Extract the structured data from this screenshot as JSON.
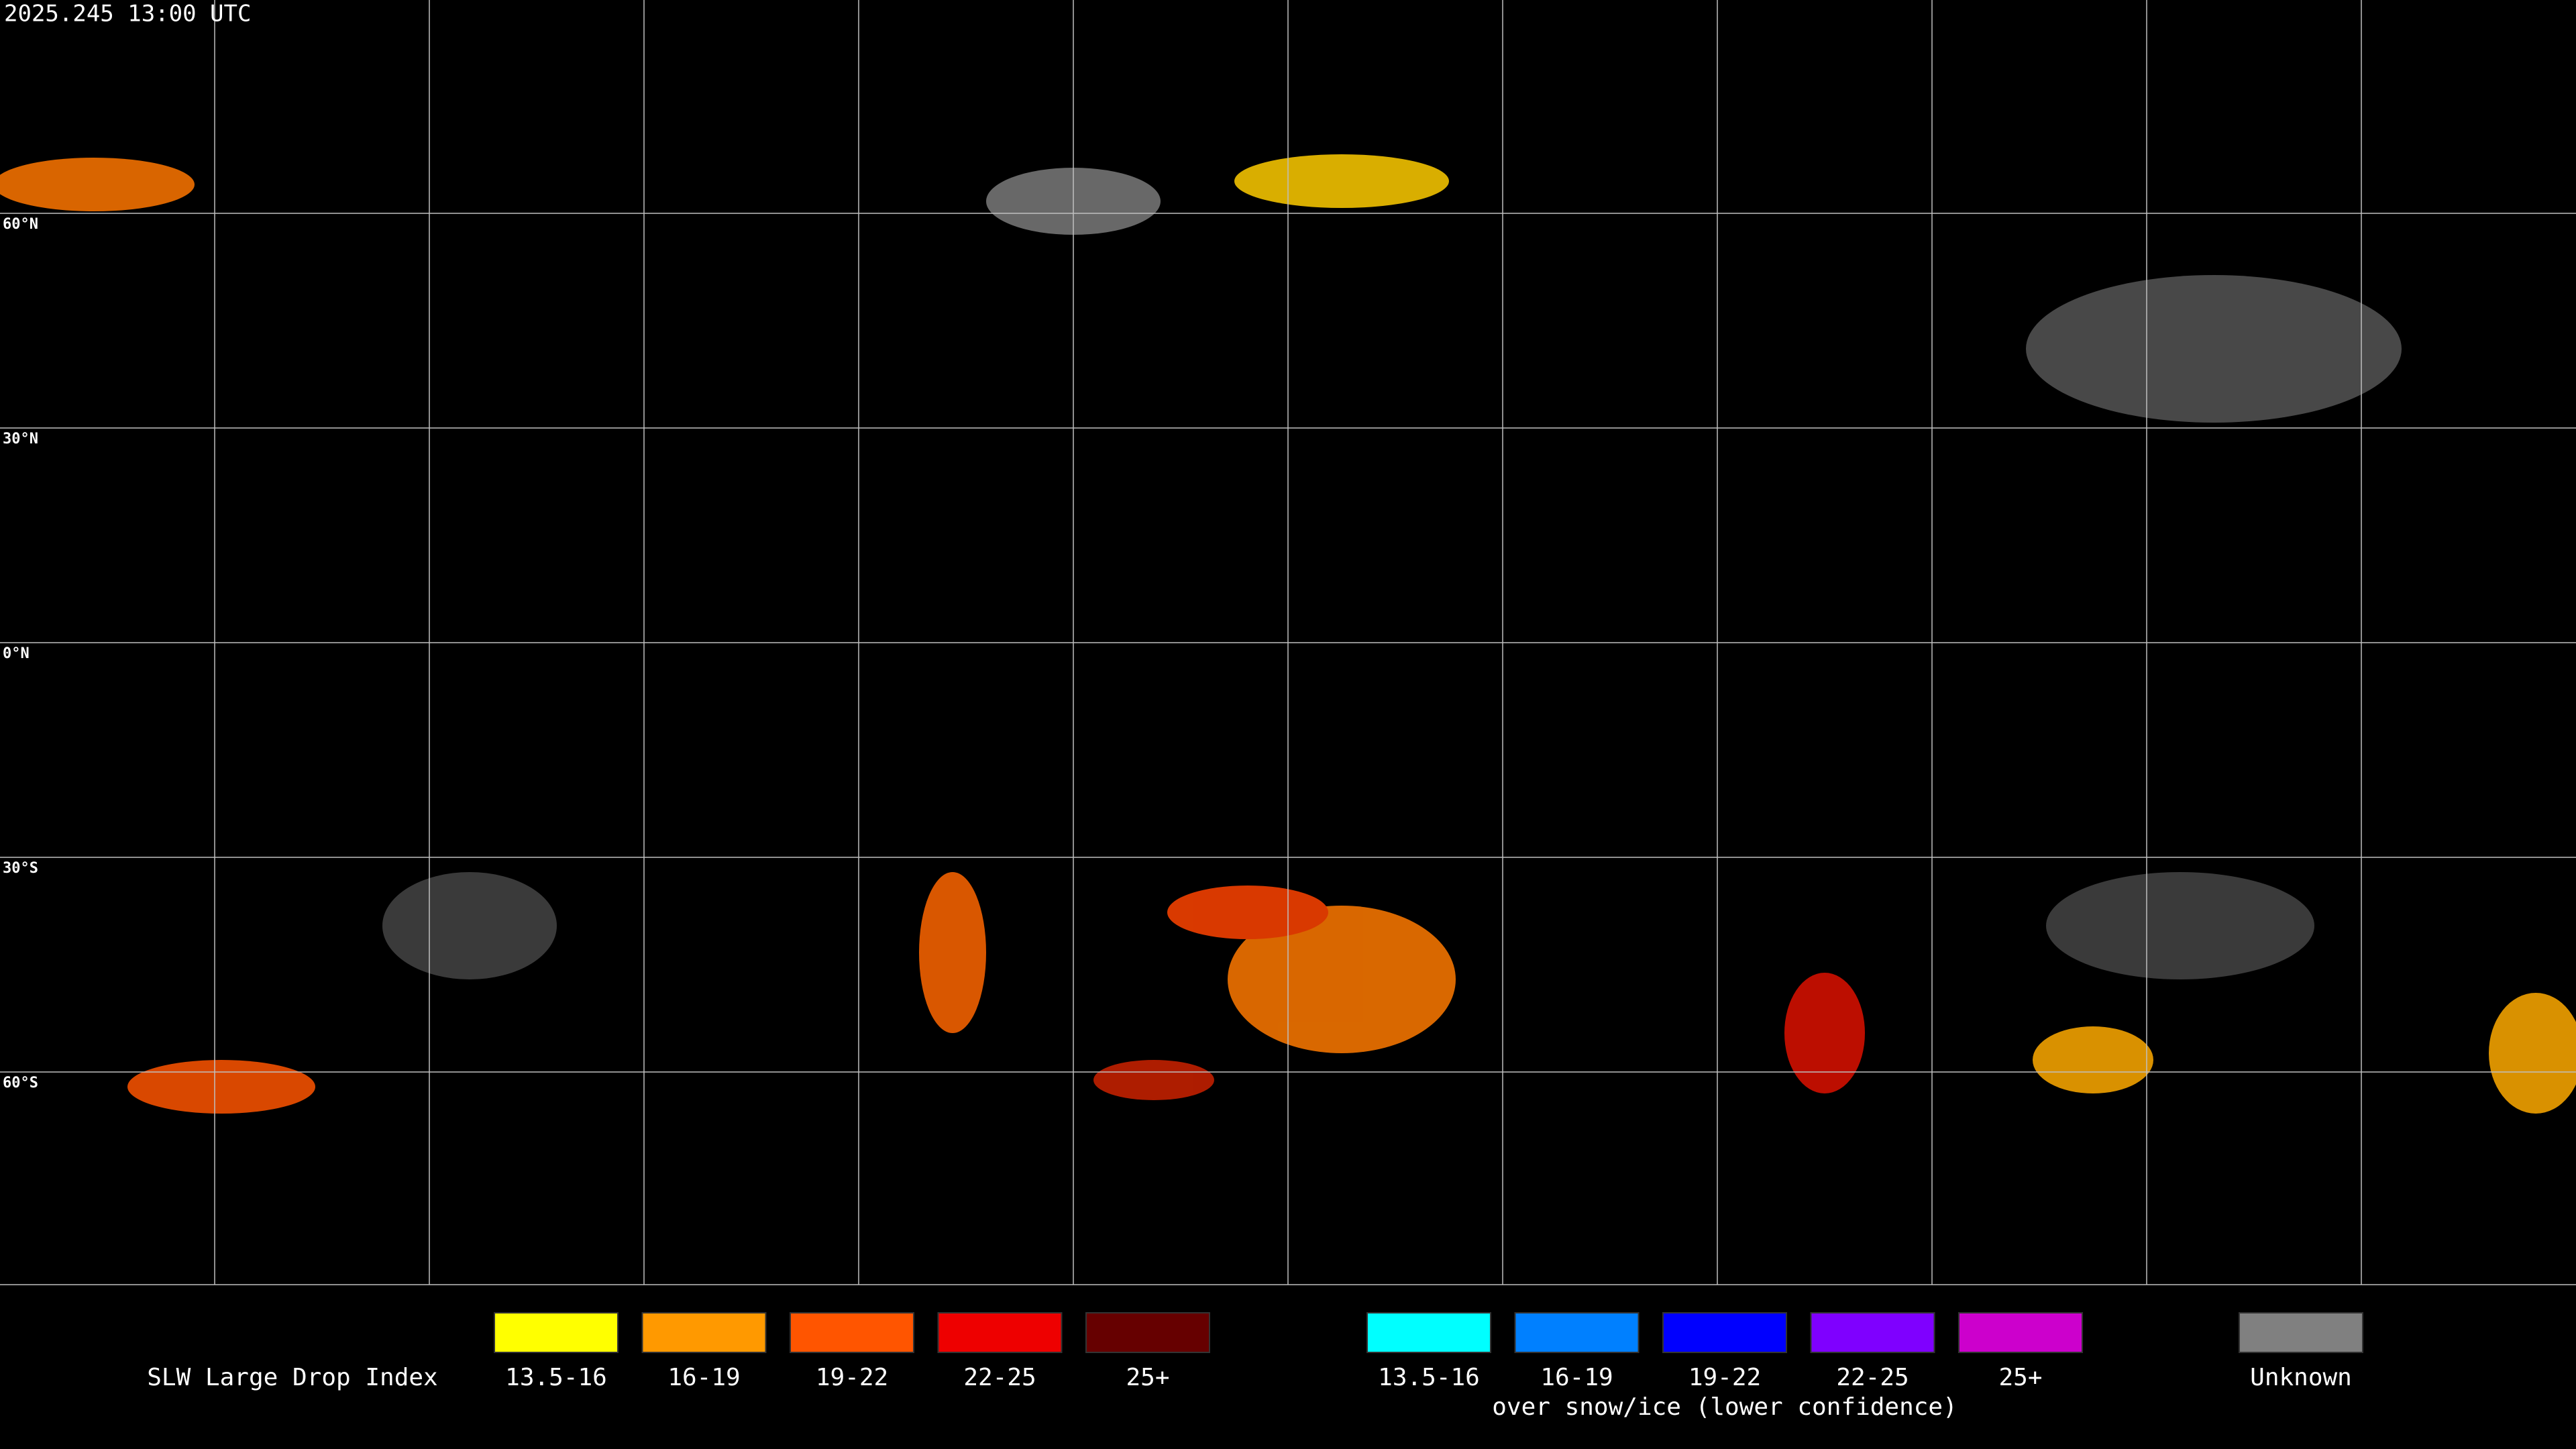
{
  "header": {
    "timestamp": "2025.245 13:00 UTC"
  },
  "map": {
    "lat_labels": [
      "60°N",
      "30°N",
      "0°N",
      "30°S",
      "60°S"
    ]
  },
  "legend": {
    "title": "SLW Large Drop Index",
    "groups": [
      {
        "items": [
          {
            "label": "13.5-16",
            "color": "#ffff00"
          },
          {
            "label": "16-19",
            "color": "#ff9900"
          },
          {
            "label": "19-22",
            "color": "#ff5500"
          },
          {
            "label": "22-25",
            "color": "#ee0000"
          },
          {
            "label": "25+",
            "color": "#660000"
          }
        ]
      },
      {
        "items": [
          {
            "label": "13.5-16",
            "color": "#00ffff"
          },
          {
            "label": "16-19",
            "color": "#0080ff"
          },
          {
            "label": "19-22",
            "color": "#0000ff"
          },
          {
            "label": "22-25",
            "color": "#7f00ff"
          },
          {
            "label": "25+",
            "color": "#cc00cc"
          }
        ],
        "caption": "over snow/ice (lower confidence)"
      },
      {
        "items": [
          {
            "label": "Unknown",
            "color": "#808080"
          }
        ]
      }
    ]
  }
}
